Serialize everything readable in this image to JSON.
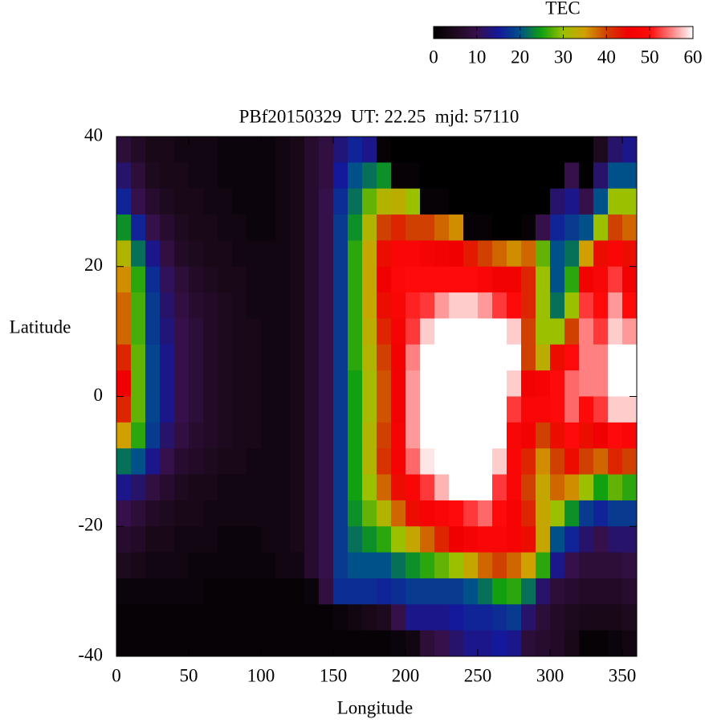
{
  "chart_data": {
    "type": "heatmap",
    "title": "PBf20150329  UT: 22.25  mjd: 57110",
    "x_label": "Longitude",
    "y_label": "Latitude",
    "xlim": [
      0,
      360
    ],
    "ylim": [
      -40,
      40
    ],
    "xticks": [
      0,
      50,
      100,
      150,
      200,
      250,
      300,
      350
    ],
    "yticks": [
      -40,
      -20,
      0,
      20,
      40
    ],
    "colorbar": {
      "title": "TEC",
      "zlim": [
        0,
        60
      ],
      "ticks": [
        0,
        10,
        20,
        30,
        40,
        50,
        60
      ],
      "colors": [
        "#000000",
        "#1e0a1e",
        "#36104a",
        "#14189a",
        "#00508a",
        "#10a010",
        "#9ac000",
        "#d0a000",
        "#d04000",
        "#f00000",
        "#ff0a0a",
        "#ff8080",
        "#ffffff"
      ]
    },
    "x": [
      5,
      15,
      25,
      35,
      45,
      55,
      65,
      75,
      85,
      95,
      105,
      115,
      125,
      135,
      145,
      155,
      165,
      175,
      185,
      195,
      205,
      215,
      225,
      235,
      245,
      255,
      265,
      275,
      285,
      295,
      305,
      315,
      325,
      335,
      345,
      355
    ],
    "y": [
      38,
      34,
      30,
      26,
      22,
      18,
      14,
      10,
      6,
      2,
      -2,
      -6,
      -10,
      -14,
      -18,
      -22,
      -26,
      -30,
      -34,
      -38
    ],
    "z": [
      [
        8,
        12,
        16,
        24,
        32,
        36,
        38,
        38,
        42,
        45,
        42,
        35,
        22,
        14,
        10,
        7,
        5,
        2,
        1,
        1
      ],
      [
        6,
        8,
        10,
        16,
        22,
        26,
        27,
        27,
        28,
        28,
        28,
        26,
        20,
        12,
        8,
        6,
        4,
        2,
        1,
        1
      ],
      [
        4,
        5,
        7,
        10,
        14,
        17,
        18,
        18,
        19,
        19,
        19,
        18,
        14,
        9,
        6,
        4,
        3,
        2,
        1,
        1
      ],
      [
        4,
        4,
        5,
        7,
        9,
        11,
        12,
        13,
        14,
        14,
        14,
        12,
        10,
        7,
        5,
        4,
        3,
        2,
        1,
        1
      ],
      [
        3,
        4,
        4,
        5,
        6,
        8,
        9,
        10,
        10,
        10,
        10,
        9,
        7,
        5,
        4,
        3,
        3,
        2,
        1,
        1
      ],
      [
        3,
        3,
        4,
        4,
        5,
        6,
        7,
        8,
        8,
        8,
        8,
        7,
        6,
        4,
        4,
        3,
        2,
        2,
        1,
        1
      ],
      [
        3,
        3,
        3,
        4,
        4,
        5,
        6,
        6,
        6,
        6,
        6,
        6,
        5,
        4,
        3,
        3,
        2,
        1,
        1,
        1
      ],
      [
        2,
        2,
        3,
        3,
        4,
        4,
        5,
        5,
        5,
        5,
        5,
        5,
        4,
        3,
        3,
        2,
        2,
        1,
        1,
        1
      ],
      [
        2,
        2,
        2,
        3,
        3,
        4,
        4,
        4,
        4,
        4,
        4,
        4,
        4,
        3,
        3,
        2,
        2,
        1,
        1,
        1
      ],
      [
        2,
        2,
        2,
        2,
        3,
        3,
        3,
        4,
        4,
        4,
        4,
        4,
        3,
        3,
        3,
        2,
        2,
        1,
        1,
        1
      ],
      [
        2,
        2,
        2,
        2,
        3,
        3,
        3,
        3,
        3,
        3,
        3,
        3,
        3,
        3,
        3,
        3,
        2,
        1,
        1,
        1
      ],
      [
        3,
        3,
        3,
        3,
        3,
        3,
        3,
        3,
        3,
        3,
        3,
        3,
        3,
        3,
        3,
        3,
        3,
        1,
        1,
        1
      ],
      [
        4,
        4,
        4,
        4,
        4,
        4,
        4,
        4,
        4,
        4,
        4,
        4,
        4,
        4,
        4,
        4,
        3,
        1,
        1,
        1
      ],
      [
        7,
        7,
        7,
        7,
        7,
        7,
        7,
        7,
        7,
        7,
        7,
        7,
        7,
        7,
        7,
        7,
        7,
        2,
        1,
        1
      ],
      [
        9,
        9,
        10,
        10,
        10,
        10,
        10,
        10,
        10,
        10,
        10,
        10,
        10,
        10,
        10,
        10,
        10,
        9,
        1,
        1
      ],
      [
        13,
        15,
        17,
        18,
        18,
        18,
        18,
        18,
        18,
        18,
        18,
        18,
        18,
        18,
        18,
        18,
        18,
        17,
        2,
        1
      ],
      [
        16,
        20,
        22,
        24,
        26,
        26,
        26,
        26,
        26,
        25,
        25,
        25,
        25,
        25,
        24,
        22,
        20,
        17,
        3,
        1
      ],
      [
        14,
        22,
        28,
        32,
        34,
        34,
        34,
        33,
        32,
        31,
        31,
        32,
        32,
        30,
        28,
        24,
        20,
        17,
        4,
        1
      ],
      [
        1,
        24,
        32,
        40,
        44,
        45,
        44,
        42,
        40,
        39,
        39,
        40,
        41,
        38,
        32,
        26,
        20,
        16,
        5,
        1
      ],
      [
        0,
        1,
        33,
        42,
        48,
        49,
        48,
        47,
        46,
        46,
        46,
        47,
        47,
        44,
        38,
        30,
        22,
        17,
        10,
        2
      ],
      [
        0,
        1,
        30,
        40,
        48,
        50,
        51,
        52,
        55,
        56,
        56,
        56,
        54,
        48,
        44,
        34,
        24,
        18,
        14,
        3
      ],
      [
        0,
        0,
        1,
        40,
        47,
        50,
        52,
        58,
        60,
        60,
        60,
        60,
        59,
        52,
        47,
        38,
        26,
        18,
        14,
        8
      ],
      [
        0,
        0,
        1,
        38,
        46,
        50,
        56,
        60,
        60,
        60,
        60,
        60,
        60,
        57,
        48,
        42,
        28,
        18,
        14,
        10
      ],
      [
        0,
        0,
        0,
        36,
        45,
        50,
        58,
        60,
        60,
        60,
        60,
        60,
        60,
        60,
        50,
        45,
        30,
        18,
        15,
        12
      ],
      [
        0,
        0,
        0,
        1,
        43,
        50,
        58,
        60,
        60,
        60,
        60,
        60,
        60,
        60,
        52,
        47,
        34,
        20,
        16,
        14
      ],
      [
        0,
        0,
        0,
        1,
        40,
        48,
        56,
        60,
        60,
        60,
        60,
        60,
        60,
        60,
        54,
        48,
        38,
        22,
        16,
        14
      ],
      [
        0,
        0,
        0,
        0,
        38,
        46,
        52,
        60,
        60,
        60,
        60,
        60,
        58,
        52,
        50,
        48,
        40,
        25,
        17,
        15
      ],
      [
        0,
        0,
        0,
        0,
        36,
        46,
        50,
        58,
        60,
        58,
        52,
        48,
        48,
        48,
        47,
        47,
        38,
        26,
        18,
        14
      ],
      [
        0,
        0,
        0,
        1,
        38,
        42,
        42,
        40,
        40,
        46,
        48,
        46,
        42,
        40,
        42,
        44,
        35,
        22,
        12,
        8
      ],
      [
        0,
        0,
        0,
        10,
        28,
        30,
        30,
        30,
        33,
        47,
        48,
        40,
        36,
        34,
        34,
        34,
        26,
        12,
        8,
        7
      ],
      [
        0,
        0,
        12,
        16,
        20,
        20,
        22,
        30,
        44,
        50,
        50,
        44,
        40,
        38,
        30,
        20,
        14,
        8,
        6,
        6
      ],
      [
        0,
        10,
        14,
        18,
        22,
        26,
        30,
        40,
        50,
        54,
        54,
        50,
        44,
        36,
        24,
        16,
        10,
        7,
        5,
        4
      ],
      [
        0,
        0,
        10,
        20,
        35,
        46,
        52,
        55,
        55,
        55,
        50,
        44,
        40,
        30,
        18,
        12,
        8,
        6,
        4,
        1
      ],
      [
        5,
        12,
        20,
        30,
        44,
        48,
        50,
        52,
        55,
        55,
        52,
        45,
        38,
        25,
        16,
        10,
        8,
        6,
        4,
        1
      ],
      [
        12,
        20,
        30,
        40,
        48,
        52,
        56,
        58,
        60,
        60,
        58,
        50,
        42,
        28,
        18,
        12,
        8,
        6,
        4,
        2
      ],
      [
        14,
        20,
        30,
        38,
        44,
        46,
        50,
        56,
        60,
        60,
        58,
        48,
        40,
        26,
        18,
        12,
        9,
        7,
        5,
        3
      ]
    ]
  }
}
